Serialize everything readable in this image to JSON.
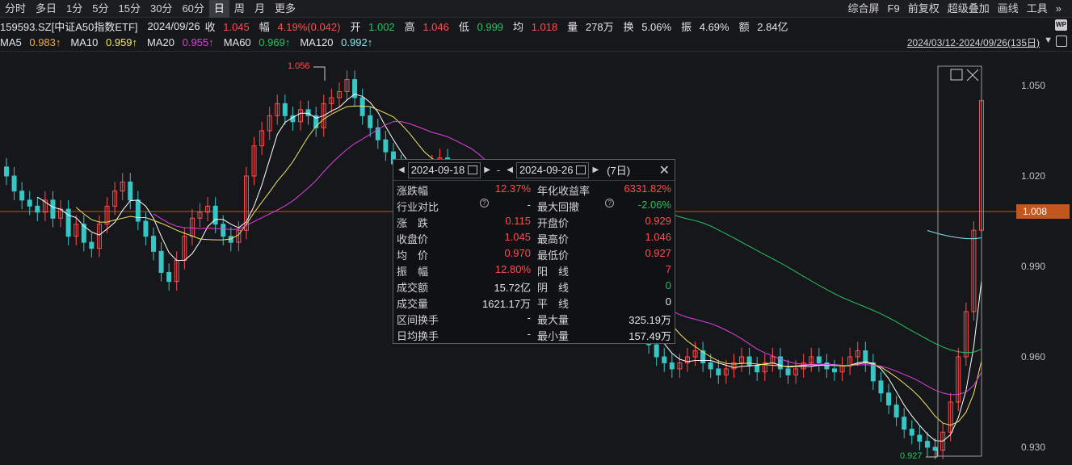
{
  "toolbar": {
    "periods": [
      "分时",
      "多日",
      "1分",
      "5分",
      "15分",
      "30分",
      "60分",
      "日",
      "周",
      "月",
      "更多"
    ],
    "active_period": "日",
    "right_tools": [
      "综合屏",
      "F9",
      "前复权",
      "超级叠加",
      "画线",
      "工具"
    ],
    "collapse_icon": "double-chevron-right-icon"
  },
  "quote": {
    "code_name": "159593.SZ[中证A50指数ETF]",
    "date": "2024/09/26",
    "close_label": "收",
    "close": "1.045",
    "change_label": "幅",
    "change": "4.19%(0.042)",
    "open_label": "开",
    "open": "1.002",
    "high_label": "高",
    "high": "1.046",
    "low_label": "低",
    "low": "0.999",
    "avg_label": "均",
    "avg": "1.018",
    "vol_label": "量",
    "vol": "278万",
    "turnover_label": "换",
    "turnover": "5.06%",
    "amp_label": "振",
    "amp": "4.69%",
    "amount_label": "额",
    "amount": "2.84亿"
  },
  "ma": {
    "ma5_label": "MA5",
    "ma5": "0.983↑",
    "ma10_label": "MA10",
    "ma10": "0.959↑",
    "ma20_label": "MA20",
    "ma20": "0.955↑",
    "ma60_label": "MA60",
    "ma60": "0.969↑",
    "ma120_label": "MA120",
    "ma120": "0.992↑"
  },
  "range_text": "2024/03/12-2024/09/26(135日)",
  "axis": {
    "y_labels": [
      "1.050",
      "1.020",
      "0.990",
      "0.960",
      "0.930"
    ],
    "current_price": "1.008",
    "max_marker": "1.056",
    "min_marker": "0.927"
  },
  "colors": {
    "up": "#ff4d4d",
    "down": "#36c6c6",
    "ma5": "#ffffff",
    "ma10": "#f5e663",
    "ma20": "#e040e0",
    "ma60": "#22c55e",
    "ma120": "#7fe7f0",
    "price_line": "#c2561c"
  },
  "popup": {
    "start_date": "2024-09-18",
    "end_date": "2024-09-26",
    "separator": "-",
    "days": "(7日)",
    "rows": [
      [
        {
          "k": "涨跌幅",
          "v": "12.37%",
          "c": "red"
        },
        {
          "k": "年化收益率",
          "v": "6331.82%",
          "c": "red"
        }
      ],
      [
        {
          "k": "行业对比",
          "v": "-",
          "c": "white",
          "q": true
        },
        {
          "k": "最大回撤",
          "v": "-2.06%",
          "c": "green",
          "q": true
        }
      ],
      [
        {
          "k": "涨　跌",
          "v": "0.115",
          "c": "red"
        },
        {
          "k": "开盘价",
          "v": "0.929",
          "c": "red"
        }
      ],
      [
        {
          "k": "收盘价",
          "v": "1.045",
          "c": "red"
        },
        {
          "k": "最高价",
          "v": "1.046",
          "c": "red"
        }
      ],
      [
        {
          "k": "均　价",
          "v": "0.970",
          "c": "red"
        },
        {
          "k": "最低价",
          "v": "0.927",
          "c": "red"
        }
      ],
      [
        {
          "k": "振　幅",
          "v": "12.80%",
          "c": "red"
        },
        {
          "k": "阳　线",
          "v": "7",
          "c": "red"
        }
      ],
      [
        {
          "k": "成交额",
          "v": "15.72亿",
          "c": "white"
        },
        {
          "k": "阴　线",
          "v": "0",
          "c": "green"
        }
      ],
      [
        {
          "k": "成交量",
          "v": "1621.17万",
          "c": "white"
        },
        {
          "k": "平　线",
          "v": "0",
          "c": "white"
        }
      ],
      [
        {
          "k": "区间换手",
          "v": "-",
          "c": "white"
        },
        {
          "k": "最大量",
          "v": "325.19万",
          "c": "white"
        }
      ],
      [
        {
          "k": "日均换手",
          "v": "-",
          "c": "white"
        },
        {
          "k": "最小量",
          "v": "157.49万",
          "c": "white"
        }
      ]
    ]
  }
}
